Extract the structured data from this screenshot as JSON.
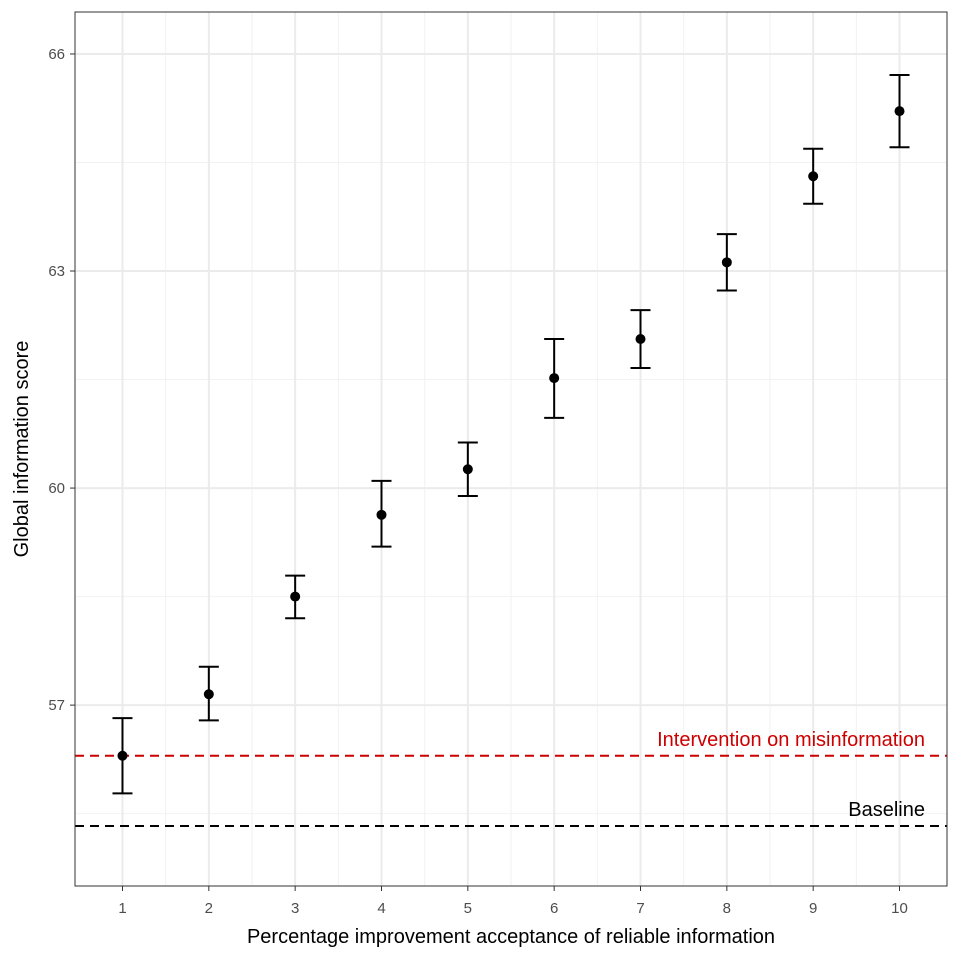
{
  "chart_data": {
    "type": "scatter",
    "title": "",
    "xlabel": "Percentage improvement acceptance of reliable information",
    "ylabel": "Global information score",
    "x": [
      1,
      2,
      3,
      4,
      5,
      6,
      7,
      8,
      9,
      10
    ],
    "series": [
      {
        "values": [
          56.3,
          57.15,
          58.5,
          59.63,
          60.26,
          61.52,
          62.06,
          63.12,
          64.31,
          65.21
        ],
        "error_low": [
          55.78,
          56.79,
          58.2,
          59.19,
          59.89,
          60.97,
          61.66,
          62.73,
          63.93,
          64.71
        ],
        "error_high": [
          56.82,
          57.53,
          58.79,
          60.1,
          60.63,
          62.06,
          62.46,
          63.51,
          64.69,
          65.71
        ],
        "color": "#000000"
      }
    ],
    "reference_lines": [
      {
        "label": "Intervention on misinformation",
        "y": 56.3,
        "color": "#cc0000",
        "style": "dashed"
      },
      {
        "label": "Baseline",
        "y": 55.33,
        "color": "#000000",
        "style": "dashed"
      }
    ],
    "xlim": [
      0.45,
      10.55
    ],
    "ylim": [
      54.5,
      66.58
    ],
    "xticks": [
      "1",
      "2",
      "3",
      "4",
      "5",
      "6",
      "7",
      "8",
      "9",
      "10"
    ],
    "yticks": [
      "57",
      "60",
      "63",
      "66"
    ],
    "grid": true,
    "legend": "none",
    "theme": {
      "panel_border": "#333333",
      "grid_major": "#ebebeb",
      "grid_minor": "#f2f2f2"
    }
  }
}
